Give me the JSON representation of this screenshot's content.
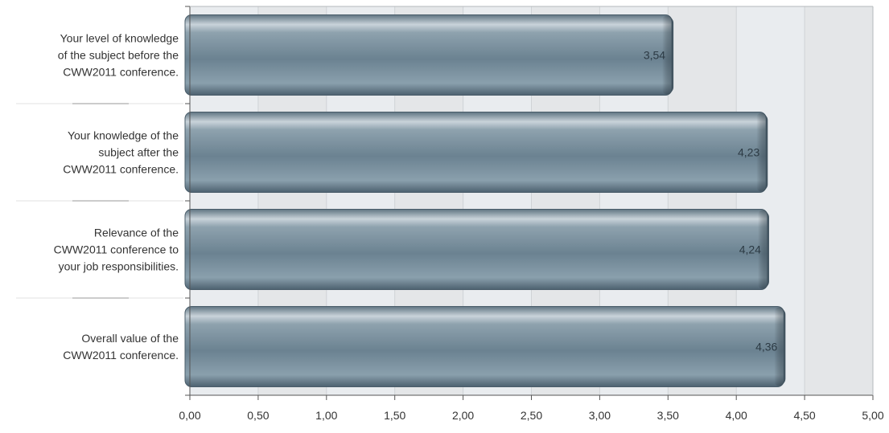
{
  "chart_data": {
    "type": "bar",
    "orientation": "horizontal",
    "categories": [
      [
        "Your level of knowledge",
        "of the subject before the",
        "CWW2011 conference."
      ],
      [
        "Your knowledge of the",
        "subject after the",
        "CWW2011 conference."
      ],
      [
        "Relevance of the",
        "CWW2011 conference to",
        "your job responsibilities."
      ],
      [
        "Overall value of the",
        "CWW2011 conference."
      ]
    ],
    "values": [
      3.54,
      4.23,
      4.24,
      4.36
    ],
    "value_labels": [
      "3,54",
      "4,23",
      "4,24",
      "4,36"
    ],
    "xlim": [
      0,
      5
    ],
    "x_ticks": [
      0,
      0.5,
      1,
      1.5,
      2,
      2.5,
      3,
      3.5,
      4,
      4.5,
      5
    ],
    "x_tick_labels": [
      "0,00",
      "0,50",
      "1,00",
      "1,50",
      "2,00",
      "2,50",
      "3,00",
      "3,50",
      "4,00",
      "4,50",
      "5,00"
    ],
    "grid": true,
    "bar_color": "#7f97a6",
    "plot_background": "#e9ecef"
  }
}
